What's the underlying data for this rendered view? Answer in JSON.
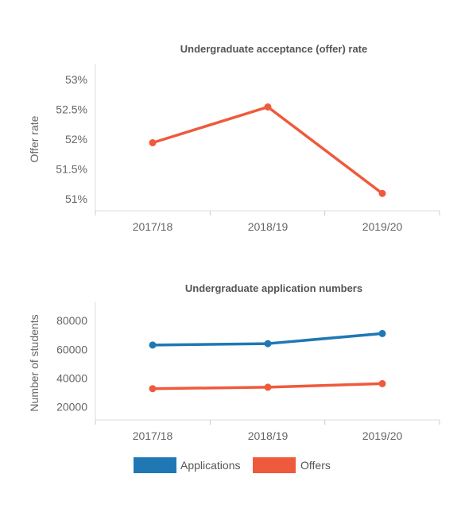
{
  "colors": {
    "applications": "#1f77b4",
    "offers": "#f05a3c"
  },
  "chart_data": [
    {
      "type": "line",
      "title": "Undergraduate acceptance (offer) rate",
      "xlabel": "",
      "ylabel": "Offer rate",
      "categories": [
        "2017/18",
        "2018/19",
        "2019/20"
      ],
      "ylim": [
        50.8,
        53.2
      ],
      "yticks": [
        51,
        51.5,
        52,
        52.5,
        53
      ],
      "ytick_labels": [
        "51%",
        "51.5%",
        "52%",
        "52.5%",
        "53%"
      ],
      "series": [
        {
          "color": "#f05a3c",
          "values": [
            51.94,
            52.54,
            51.09
          ]
        }
      ]
    },
    {
      "type": "line",
      "title": "Undergraduate application numbers",
      "xlabel": "",
      "ylabel": "Number of students",
      "categories": [
        "2017/18",
        "2018/19",
        "2019/20"
      ],
      "ylim": [
        11000,
        90000
      ],
      "yticks": [
        20000,
        40000,
        60000,
        80000
      ],
      "ytick_labels": [
        "20000",
        "40000",
        "60000",
        "80000"
      ],
      "series": [
        {
          "name": "Applications",
          "color": "#1f77b4",
          "values": [
            63000,
            64000,
            71000
          ]
        },
        {
          "name": "Offers",
          "color": "#f05a3c",
          "values": [
            32700,
            33700,
            36200
          ]
        }
      ],
      "legend": {
        "position": "bottom",
        "items": [
          "Applications",
          "Offers"
        ]
      }
    }
  ]
}
